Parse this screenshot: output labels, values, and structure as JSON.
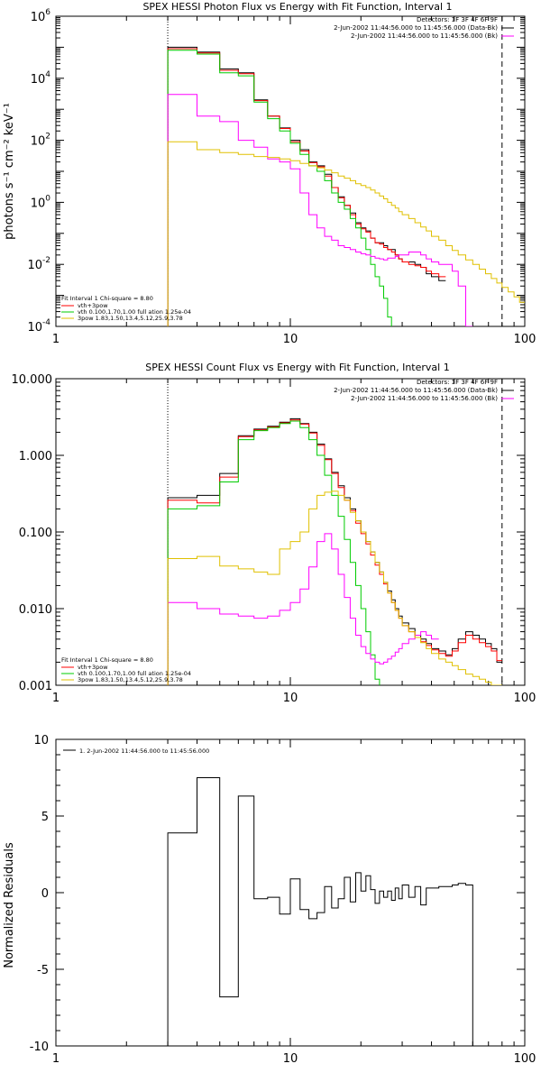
{
  "chart_data": [
    {
      "type": "line",
      "title": "SPEX HESSI Photon Flux vs Energy with Fit Function, Interval 1",
      "xlabel": "",
      "ylabel": "photons s⁻¹ cm⁻² keV⁻¹",
      "xscale": "log",
      "yscale": "log",
      "xlim": [
        1,
        100
      ],
      "ylim": [
        0.0001,
        1000000
      ],
      "xticks": [
        "1",
        "10",
        "100"
      ],
      "yticks_exp": [
        "-4",
        "-2",
        "0",
        "2",
        "4",
        "6"
      ],
      "legend_top": {
        "l1": "Detectors: 1F 3F 4F 6F 9F",
        "l2": "2-Jun-2002 11:44:56.000 to 11:45:56.000 (Data-Bk)",
        "l3": "2-Jun-2002 11:44:56.000 to 11:45:56.000 (Bk)"
      },
      "legend_bottom": {
        "l0": "Fit Interval 1    Chi-square = 8.80",
        "l1": "vth+3pow",
        "l2": "vth 0.100,1.70,1.00   full ation 1.25e-04",
        "l3": "3pow 1.83,1.50,13.4,5.12,25.9,3.78"
      },
      "markers": {
        "dotted_x": 3,
        "dashed_x": 80
      },
      "x_edges": [
        3,
        4,
        5,
        6,
        7,
        8,
        9,
        10,
        11,
        12,
        13,
        14,
        15,
        16,
        17,
        18,
        19,
        20,
        21,
        22,
        23,
        24,
        25,
        26,
        27,
        28,
        29,
        30,
        32,
        34,
        36,
        38,
        40,
        43,
        46,
        49,
        52,
        56,
        60,
        64,
        68,
        72,
        76,
        80,
        85,
        90,
        95,
        100
      ],
      "series": [
        {
          "color": "#000000",
          "values": [
            100000.0,
            70000.0,
            20000.0,
            15000.0,
            2000.0,
            600.0,
            250.0,
            100.0,
            50.0,
            20.0,
            15.0,
            8.0,
            3.0,
            1.5,
            0.8,
            0.45,
            0.22,
            0.15,
            0.12,
            0.07,
            0.05,
            0.05,
            0.04,
            0.03,
            0.03,
            0.02,
            0.015,
            0.012,
            0.012,
            0.01,
            0.008,
            0.005,
            0.004,
            0.003
          ]
        },
        {
          "color": "#ff0000",
          "values": [
            90000.0,
            65000.0,
            18000.0,
            14000.0,
            1900.0,
            600.0,
            240.0,
            90.0,
            45.0,
            19.0,
            14.0,
            7.0,
            3.0,
            1.4,
            0.8,
            0.4,
            0.2,
            0.14,
            0.11,
            0.07,
            0.05,
            0.045,
            0.035,
            0.03,
            0.025,
            0.02,
            0.015,
            0.012,
            0.01,
            0.009,
            0.008,
            0.006,
            0.005,
            0.004
          ]
        },
        {
          "color": "#00cc00",
          "values": [
            80000.0,
            60000.0,
            15000.0,
            12000.0,
            1700.0,
            500.0,
            200.0,
            80.0,
            35.0,
            15.0,
            10.0,
            5.0,
            2.0,
            1.0,
            0.6,
            0.3,
            0.15,
            0.07,
            0.03,
            0.01,
            0.004,
            0.002,
            0.0008,
            0.0002,
            6e-05
          ]
        },
        {
          "color": "#ff00ff",
          "values": [
            3000.0,
            600.0,
            400.0,
            100.0,
            60.0,
            25.0,
            20.0,
            12.0,
            2.0,
            0.4,
            0.15,
            0.08,
            0.06,
            0.04,
            0.035,
            0.03,
            0.025,
            0.022,
            0.02,
            0.018,
            0.016,
            0.015,
            0.014,
            0.016,
            0.016,
            0.018,
            0.02,
            0.02,
            0.025,
            0.025,
            0.02,
            0.015,
            0.012,
            0.01,
            0.01,
            0.006,
            0.002,
            0.0001
          ]
        },
        {
          "color": "#e0c000",
          "values": [
            90.0,
            50.0,
            40.0,
            35.0,
            30.0,
            28.0,
            25.0,
            22.0,
            18.0,
            15.0,
            13.0,
            11.0,
            9.0,
            7.0,
            6.0,
            5.0,
            4.0,
            3.5,
            3.0,
            2.5,
            2.0,
            1.6,
            1.3,
            1.0,
            0.8,
            0.65,
            0.5,
            0.4,
            0.3,
            0.22,
            0.16,
            0.12,
            0.08,
            0.06,
            0.04,
            0.028,
            0.02,
            0.014,
            0.01,
            0.007,
            0.005,
            0.0035,
            0.0025,
            0.0018,
            0.0013,
            0.0009,
            0.0006
          ]
        }
      ]
    },
    {
      "type": "line",
      "title": "SPEX HESSI Count Flux vs Energy with Fit Function, Interval 1",
      "xlabel": "",
      "ylabel": "",
      "xscale": "log",
      "yscale": "log",
      "xlim": [
        1,
        100
      ],
      "ylim": [
        0.001,
        10
      ],
      "xticks": [
        "1",
        "10",
        "100"
      ],
      "yticks": [
        "0.001",
        "0.010",
        "0.100",
        "1.000",
        "10.000"
      ],
      "legend_top": {
        "l1": "Detectors: 1F 3F 4F 6F 9F",
        "l2": "2-Jun-2002 11:44:56.000 to 11:45:56.000 (Data-Bk)",
        "l3": "2-Jun-2002 11:44:56.000 to 11:45:56.000 (Bk)"
      },
      "legend_bottom": {
        "l0": "Fit Interval 1    Chi-square = 8.80",
        "l1": "vth+3pow",
        "l2": "vth 0.100,1.70,1.00   full ation 1.25e-04",
        "l3": "3pow 1.83,1.50,13.4,5.12,25.9,3.78"
      },
      "markers": {
        "dotted_x": 3,
        "dashed_x": 80
      },
      "x_edges": [
        3,
        4,
        5,
        6,
        7,
        8,
        9,
        10,
        11,
        12,
        13,
        14,
        15,
        16,
        17,
        18,
        19,
        20,
        21,
        22,
        23,
        24,
        25,
        26,
        27,
        28,
        29,
        30,
        32,
        34,
        36,
        38,
        40,
        43,
        46,
        49,
        52,
        56,
        60,
        64,
        68,
        72,
        76,
        80
      ],
      "series": [
        {
          "color": "#000000",
          "values": [
            0.28,
            0.3,
            0.58,
            1.8,
            2.2,
            2.4,
            2.7,
            3.0,
            2.6,
            2.0,
            1.4,
            0.9,
            0.6,
            0.4,
            0.28,
            0.2,
            0.14,
            0.1,
            0.075,
            0.055,
            0.04,
            0.03,
            0.022,
            0.017,
            0.013,
            0.01,
            0.008,
            0.0065,
            0.0055,
            0.0045,
            0.004,
            0.0035,
            0.003,
            0.0028,
            0.0025,
            0.003,
            0.004,
            0.005,
            0.0045,
            0.004,
            0.0035,
            0.003,
            0.002
          ]
        },
        {
          "color": "#ff0000",
          "values": [
            0.26,
            0.24,
            0.52,
            1.75,
            2.15,
            2.35,
            2.65,
            2.9,
            2.55,
            1.95,
            1.35,
            0.88,
            0.58,
            0.38,
            0.26,
            0.19,
            0.13,
            0.095,
            0.07,
            0.05,
            0.037,
            0.028,
            0.021,
            0.016,
            0.012,
            0.0095,
            0.0075,
            0.006,
            0.005,
            0.0042,
            0.0037,
            0.0033,
            0.0029,
            0.0026,
            0.0024,
            0.0028,
            0.0036,
            0.0045,
            0.004,
            0.0036,
            0.0032,
            0.0028,
            0.0021
          ]
        },
        {
          "color": "#00cc00",
          "values": [
            0.2,
            0.22,
            0.45,
            1.6,
            2.1,
            2.3,
            2.6,
            2.8,
            2.3,
            1.6,
            1.0,
            0.55,
            0.3,
            0.16,
            0.08,
            0.04,
            0.02,
            0.01,
            0.005,
            0.0025,
            0.0012,
            0.0007
          ]
        },
        {
          "color": "#ff00ff",
          "values": [
            0.012,
            0.01,
            0.0085,
            0.008,
            0.0075,
            0.008,
            0.0095,
            0.012,
            0.018,
            0.035,
            0.075,
            0.095,
            0.06,
            0.028,
            0.014,
            0.0075,
            0.0045,
            0.0032,
            0.0026,
            0.0022,
            0.002,
            0.0019,
            0.002,
            0.0022,
            0.0024,
            0.0027,
            0.003,
            0.0035,
            0.004,
            0.0045,
            0.005,
            0.0045,
            0.004
          ]
        },
        {
          "color": "#e0c000",
          "values": [
            0.045,
            0.048,
            0.036,
            0.033,
            0.03,
            0.028,
            0.06,
            0.075,
            0.1,
            0.2,
            0.3,
            0.33,
            0.34,
            0.3,
            0.26,
            0.18,
            0.14,
            0.1,
            0.075,
            0.055,
            0.04,
            0.03,
            0.022,
            0.016,
            0.012,
            0.0095,
            0.0075,
            0.006,
            0.005,
            0.0042,
            0.0036,
            0.003,
            0.0026,
            0.0022,
            0.002,
            0.0018,
            0.0016,
            0.0014,
            0.0013,
            0.0012,
            0.0011,
            0.001,
            0.001
          ]
        }
      ]
    },
    {
      "type": "line",
      "title": "",
      "xlabel": "",
      "ylabel": "Normalized Residuals",
      "xscale": "log",
      "yscale": "linear",
      "xlim": [
        1,
        100
      ],
      "ylim": [
        -10,
        10
      ],
      "xticks": [
        "1",
        "10",
        "100"
      ],
      "yticks": [
        "-10",
        "-5",
        "0",
        "5",
        "10"
      ],
      "legend": "1.  2-Jun-2002 11:44:56.000 to 11:45:56.000",
      "x_edges": [
        3,
        4,
        5,
        6,
        7,
        8,
        9,
        10,
        11,
        12,
        13,
        14,
        15,
        16,
        17,
        18,
        19,
        20,
        21,
        22,
        23,
        24,
        25,
        26,
        27,
        28,
        29,
        30,
        32,
        34,
        36,
        38,
        40,
        43,
        46,
        49,
        52,
        56,
        60,
        64,
        68,
        72,
        76,
        80
      ],
      "series": [
        {
          "color": "#000000",
          "values": [
            3.9,
            7.5,
            -6.8,
            6.3,
            -0.4,
            -0.3,
            -1.4,
            0.9,
            -1.1,
            -1.7,
            -1.3,
            0.4,
            -1.0,
            -0.4,
            1.0,
            -0.6,
            1.3,
            0.1,
            1.1,
            0.2,
            -0.7,
            0.1,
            -0.3,
            0.1,
            -0.5,
            0.3,
            -0.4,
            0.5,
            -0.3,
            0.4,
            -0.8,
            0.3,
            0.3,
            0.4,
            0.4,
            0.5,
            0.6,
            0.5
          ]
        }
      ]
    }
  ]
}
